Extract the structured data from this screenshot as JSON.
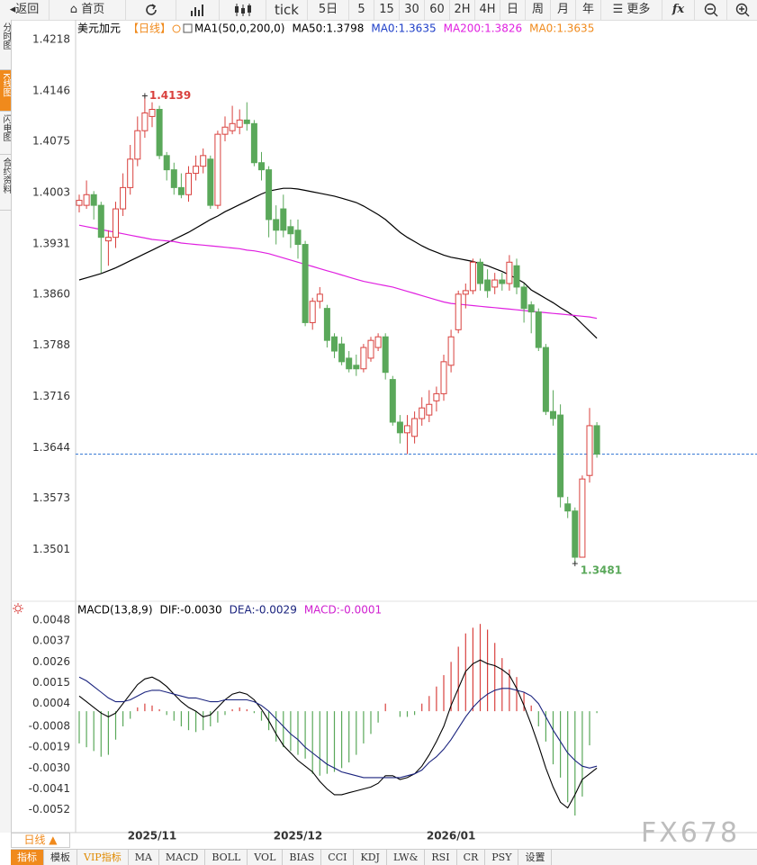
{
  "toolbar": [
    "返回",
    "首页",
    "tick",
    "5日",
    "5",
    "15",
    "30",
    "60",
    "2H",
    "4H",
    "日",
    "周",
    "月",
    "年",
    "更多",
    "fx"
  ],
  "sidebar": [
    "分时图",
    "K线图",
    "闪电图",
    "合约资料"
  ],
  "period_button": "日线 ▲",
  "tabs": [
    "指标",
    "模板",
    "VIP指标",
    "MA",
    "MACD",
    "BOLL",
    "VOL",
    "BIAS",
    "CCI",
    "KDJ",
    "LW&",
    "RSI",
    "CR",
    "PSY",
    "设置"
  ],
  "watermark": "FX678",
  "chart_data": [
    {
      "type": "candlestick",
      "title": "美元加元",
      "subtitle": "【日线】",
      "indicator": "MA1(50,0,200,0)",
      "color_up": "#d9413e",
      "color_down": "#5aa85a",
      "open": [
        1.3985,
        1.3985,
        1.4,
        1.3985,
        1.3935,
        1.394,
        1.398,
        1.401,
        1.405,
        1.409,
        1.411,
        1.412,
        1.4055,
        1.4035,
        1.401,
        1.4,
        1.403,
        1.404,
        1.405,
        1.3985,
        1.4085,
        1.409,
        1.4095,
        1.4105,
        1.41,
        1.4045,
        1.4035,
        1.3965,
        1.398,
        1.3955,
        1.395,
        1.393,
        1.382,
        1.385,
        1.384,
        1.38,
        1.379,
        1.377,
        1.376,
        1.3755,
        1.377,
        1.3785,
        1.38,
        1.374,
        1.368,
        1.3665,
        1.366,
        1.3685,
        1.369,
        1.371,
        1.372,
        1.376,
        1.381,
        1.386,
        1.3865,
        1.3905,
        1.388,
        1.387,
        1.388,
        1.3875,
        1.39,
        1.387,
        1.3845,
        1.3835,
        1.3785,
        1.3695,
        1.369,
        1.3565,
        1.3555,
        1.349,
        1.3605,
        1.3675
      ],
      "high": [
        1.4,
        1.402,
        1.4005,
        1.399,
        1.395,
        1.399,
        1.403,
        1.407,
        1.411,
        1.4139,
        1.413,
        1.4125,
        1.406,
        1.4045,
        1.403,
        1.404,
        1.4055,
        1.4065,
        1.4055,
        1.409,
        1.411,
        1.4125,
        1.412,
        1.413,
        1.4105,
        1.406,
        1.404,
        1.3985,
        1.4,
        1.3965,
        1.3965,
        1.3935,
        1.3855,
        1.387,
        1.3845,
        1.3805,
        1.38,
        1.378,
        1.3775,
        1.379,
        1.38,
        1.3805,
        1.3805,
        1.3745,
        1.369,
        1.369,
        1.3695,
        1.3715,
        1.3725,
        1.373,
        1.3775,
        1.381,
        1.3865,
        1.3875,
        1.391,
        1.391,
        1.3895,
        1.389,
        1.389,
        1.3915,
        1.391,
        1.3875,
        1.385,
        1.384,
        1.379,
        1.3725,
        1.3705,
        1.3575,
        1.356,
        1.3605,
        1.37,
        1.368
      ],
      "low": [
        1.3975,
        1.398,
        1.3965,
        1.389,
        1.39,
        1.3925,
        1.397,
        1.4,
        1.404,
        1.408,
        1.4095,
        1.405,
        1.402,
        1.4,
        1.3995,
        1.399,
        1.402,
        1.403,
        1.398,
        1.398,
        1.4075,
        1.4085,
        1.4085,
        1.409,
        1.404,
        1.402,
        1.394,
        1.393,
        1.394,
        1.3925,
        1.391,
        1.3815,
        1.381,
        1.384,
        1.3785,
        1.377,
        1.376,
        1.375,
        1.3745,
        1.375,
        1.3765,
        1.378,
        1.374,
        1.3675,
        1.365,
        1.3635,
        1.365,
        1.3675,
        1.368,
        1.3695,
        1.371,
        1.375,
        1.3805,
        1.384,
        1.386,
        1.3865,
        1.3855,
        1.386,
        1.3865,
        1.3865,
        1.386,
        1.382,
        1.3805,
        1.378,
        1.369,
        1.3675,
        1.356,
        1.3545,
        1.3481,
        1.349,
        1.3595,
        1.363
      ],
      "close": [
        1.3992,
        1.4,
        1.3985,
        1.394,
        1.394,
        1.398,
        1.401,
        1.405,
        1.409,
        1.4115,
        1.412,
        1.4055,
        1.4035,
        1.401,
        1.4,
        1.403,
        1.404,
        1.4055,
        1.3985,
        1.4085,
        1.4095,
        1.41,
        1.4105,
        1.41,
        1.4045,
        1.4035,
        1.3965,
        1.395,
        1.395,
        1.3945,
        1.393,
        1.382,
        1.385,
        1.386,
        1.3795,
        1.378,
        1.3765,
        1.3755,
        1.3755,
        1.3785,
        1.3795,
        1.38,
        1.375,
        1.368,
        1.3665,
        1.3675,
        1.3685,
        1.37,
        1.3705,
        1.372,
        1.3765,
        1.38,
        1.386,
        1.3865,
        1.3905,
        1.3875,
        1.3865,
        1.388,
        1.3875,
        1.3905,
        1.387,
        1.384,
        1.3835,
        1.3785,
        1.3695,
        1.3685,
        1.3575,
        1.3555,
        1.349,
        1.36,
        1.3675,
        1.3635
      ],
      "series": [
        {
          "name": "MA50:1.3798",
          "color": "#000000",
          "values": [
            1.388,
            1.3883,
            1.3886,
            1.3889,
            1.3893,
            1.3897,
            1.3902,
            1.3907,
            1.3912,
            1.3917,
            1.3922,
            1.3927,
            1.3932,
            1.3937,
            1.3942,
            1.3947,
            1.3953,
            1.3959,
            1.3965,
            1.397,
            1.3976,
            1.3981,
            1.3986,
            1.3991,
            1.3996,
            1.4001,
            1.4005,
            1.4007,
            1.4009,
            1.4009,
            1.4008,
            1.4006,
            1.4004,
            1.4002,
            1.4,
            1.3998,
            1.3995,
            1.3992,
            1.3989,
            1.3984,
            1.3978,
            1.3972,
            1.3965,
            1.3956,
            1.3947,
            1.394,
            1.3934,
            1.3928,
            1.3923,
            1.3919,
            1.3915,
            1.3912,
            1.391,
            1.3908,
            1.3906,
            1.3903,
            1.39,
            1.3896,
            1.3892,
            1.3887,
            1.3882,
            1.3876,
            1.3866,
            1.386,
            1.3854,
            1.3848,
            1.3841,
            1.3835,
            1.3828,
            1.3818,
            1.3808,
            1.3798
          ]
        },
        {
          "name": "MA0:1.3635",
          "color": "#1e3fc8"
        },
        {
          "name": "MA200:1.3826",
          "color": "#e020e0",
          "values": [
            1.3957,
            1.3955,
            1.3953,
            1.3951,
            1.3949,
            1.3947,
            1.3945,
            1.3943,
            1.3941,
            1.3939,
            1.3937,
            1.3936,
            1.3935,
            1.3934,
            1.3932,
            1.3931,
            1.393,
            1.3929,
            1.3928,
            1.3927,
            1.3926,
            1.3925,
            1.3924,
            1.3922,
            1.3921,
            1.3919,
            1.3917,
            1.3914,
            1.3911,
            1.3908,
            1.3905,
            1.3902,
            1.3899,
            1.3896,
            1.3893,
            1.389,
            1.3887,
            1.3884,
            1.3881,
            1.3878,
            1.3876,
            1.3874,
            1.3872,
            1.387,
            1.3867,
            1.3864,
            1.3861,
            1.3858,
            1.3855,
            1.3852,
            1.3849,
            1.3847,
            1.3846,
            1.3845,
            1.3844,
            1.3843,
            1.3842,
            1.3841,
            1.384,
            1.3839,
            1.3838,
            1.3837,
            1.3836,
            1.3835,
            1.3834,
            1.3833,
            1.3832,
            1.3831,
            1.383,
            1.3829,
            1.3828,
            1.3826
          ]
        },
        {
          "name": "MA0:1.3635",
          "color": "#f08a1c"
        }
      ],
      "ylim": [
        1.3428,
        1.4246
      ],
      "yticks": [
        1.4218,
        1.4146,
        1.4075,
        1.4003,
        1.3931,
        {
          "value": 1.386,
          "label": "1.3860"
        },
        1.3788,
        1.3716,
        1.3644,
        1.3573,
        1.3501
      ],
      "high_mark": 1.4139,
      "low_mark": 1.3481,
      "last_price": 1.3635
    },
    {
      "type": "macd",
      "title": "MACD(13,8,9)",
      "categories": [
        null,
        null,
        null,
        null,
        null,
        null,
        null,
        null,
        null,
        null,
        "2025/11",
        null,
        null,
        null,
        null,
        null,
        null,
        null,
        null,
        null,
        null,
        null,
        null,
        null,
        null,
        null,
        null,
        null,
        null,
        null,
        "2025/12",
        null,
        null,
        null,
        null,
        null,
        null,
        null,
        null,
        null,
        null,
        null,
        null,
        null,
        null,
        null,
        null,
        null,
        null,
        null,
        null,
        "2026/01",
        null,
        null,
        null,
        null,
        null,
        null,
        null,
        null,
        null,
        null,
        null,
        null,
        null,
        null,
        null,
        null,
        null,
        null,
        null,
        null
      ],
      "series": [
        {
          "name": "DIF:-0.0030",
          "color": "#000000",
          "kind": "line",
          "values": [
            0.0008,
            0.0005,
            0.0002,
            -0.0001,
            -0.0003,
            -0.0001,
            0.0004,
            0.0009,
            0.0014,
            0.0017,
            0.0018,
            0.0016,
            0.0013,
            0.0009,
            0.0005,
            0.0002,
            0,
            -0.0003,
            -0.0002,
            0.0002,
            0.0006,
            0.0009,
            0.001,
            0.0009,
            0.0006,
            0.0001,
            -0.0005,
            -0.0012,
            -0.0018,
            -0.0022,
            -0.0026,
            -0.0029,
            -0.0032,
            -0.0037,
            -0.0041,
            -0.0044,
            -0.0044,
            -0.0043,
            -0.0042,
            -0.0041,
            -0.004,
            -0.0038,
            -0.0034,
            -0.0034,
            -0.0036,
            -0.0035,
            -0.0033,
            -0.0029,
            -0.0023,
            -0.0016,
            -0.0008,
            0.0003,
            0.0012,
            0.0021,
            0.0025,
            0.0027,
            0.0025,
            0.0024,
            0.0022,
            0.0019,
            0.0012,
            0.0003,
            -0.0007,
            -0.0018,
            -0.003,
            -0.004,
            -0.0048,
            -0.0051,
            -0.0044,
            -0.0036,
            -0.0033,
            -0.003
          ]
        },
        {
          "name": "DEA:-0.0029",
          "color": "#1a237e",
          "kind": "line",
          "values": [
            0.0018,
            0.0016,
            0.0013,
            0.001,
            0.0007,
            0.0005,
            0.0005,
            0.0006,
            0.0008,
            0.001,
            0.0011,
            0.0011,
            0.001,
            0.0009,
            0.0008,
            0.0007,
            0.0007,
            0.0006,
            0.0005,
            0.0005,
            0.0006,
            0.0006,
            0.0006,
            0.0006,
            0.0005,
            0.0003,
            0,
            -0.0004,
            -0.0008,
            -0.0012,
            -0.0015,
            -0.0019,
            -0.0022,
            -0.0025,
            -0.0028,
            -0.003,
            -0.0032,
            -0.0033,
            -0.0034,
            -0.0035,
            -0.0035,
            -0.0035,
            -0.0035,
            -0.0035,
            -0.0035,
            -0.0034,
            -0.0033,
            -0.0031,
            -0.0027,
            -0.0024,
            -0.002,
            -0.0015,
            -0.0009,
            -0.0003,
            0.0002,
            0.0006,
            0.0009,
            0.0011,
            0.0012,
            0.0012,
            0.0011,
            0.001,
            0.0008,
            0.0004,
            -0.0003,
            -0.001,
            -0.0016,
            -0.0022,
            -0.0026,
            -0.0029,
            -0.003,
            -0.0029
          ]
        },
        {
          "name": "MACD:-0.0001",
          "color": "#d020d0",
          "kind": "bar",
          "color_up": "#d9413e",
          "color_down": "#5aa85a",
          "values": [
            -0.0017,
            -0.0019,
            -0.0021,
            -0.0024,
            -0.0023,
            -0.0015,
            -0.0008,
            -0.0004,
            0.0002,
            0.0004,
            0.0003,
            0.0001,
            -0.0002,
            -0.0005,
            -0.0008,
            -0.001,
            -0.0011,
            -0.001,
            -0.0008,
            -0.0006,
            -0.0002,
            0.0001,
            0.0002,
            0.0001,
            -0.0001,
            -0.0005,
            -0.001,
            -0.0016,
            -0.0019,
            -0.0021,
            -0.0023,
            -0.0025,
            -0.0033,
            -0.0034,
            -0.0033,
            -0.0032,
            -0.003,
            -0.0027,
            -0.0023,
            -0.0017,
            -0.0012,
            -0.0006,
            0.0004,
            0,
            -0.0003,
            -0.0003,
            -0.0002,
            0.0004,
            0.0008,
            0.0013,
            0.0019,
            0.0026,
            0.0034,
            0.0041,
            0.0044,
            0.0046,
            0.0043,
            0.0036,
            0.0028,
            0.0022,
            0.0018,
            0.001,
            0.0003,
            -0.0008,
            -0.0016,
            -0.0028,
            -0.0035,
            -0.0048,
            -0.0055,
            -0.0045,
            -0.0018,
            -0.0001
          ]
        }
      ],
      "ylim": [
        -0.0064,
        0.0057
      ],
      "yticks": [
        0.0048,
        0.0037,
        0.0026,
        0.0015,
        0.0004,
        -0.0008,
        -0.0019,
        {
          "value": -0.003,
          "label": "-0.0030"
        },
        -0.0041,
        -0.0052
      ]
    }
  ]
}
